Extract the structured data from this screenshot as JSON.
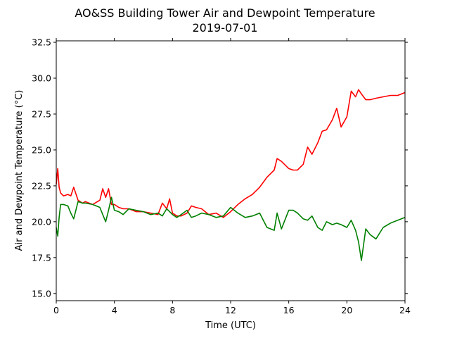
{
  "chart_data": {
    "type": "line",
    "title": "AO&SS Building Tower Air and Dewpoint Temperature",
    "subtitle": "2019-07-01",
    "xlabel": "Time (UTC)",
    "ylabel": "Air and Dewpoint Temperature (°C)",
    "xlim": [
      0,
      24
    ],
    "ylim": [
      14.5,
      32.6
    ],
    "xticks": [
      0,
      4,
      8,
      12,
      16,
      20,
      24
    ],
    "xtick_labels": [
      "0",
      "4",
      "8",
      "12",
      "16",
      "20",
      "24"
    ],
    "yticks": [
      15.0,
      17.5,
      20.0,
      22.5,
      25.0,
      27.5,
      30.0,
      32.5
    ],
    "ytick_labels": [
      "15.0",
      "17.5",
      "20.0",
      "22.5",
      "25.0",
      "27.5",
      "30.0",
      "32.5"
    ],
    "grid": false,
    "x": [
      0,
      0.1,
      0.2,
      0.3,
      0.5,
      0.8,
      1.0,
      1.2,
      1.5,
      1.8,
      2.0,
      2.5,
      3.0,
      3.2,
      3.4,
      3.6,
      3.8,
      4.0,
      4.3,
      4.6,
      5.0,
      5.5,
      6.0,
      6.5,
      7.0,
      7.3,
      7.6,
      7.8,
      8.0,
      8.3,
      8.6,
      9.0,
      9.3,
      9.6,
      10.0,
      10.5,
      11.0,
      11.5,
      12.0,
      12.5,
      13.0,
      13.5,
      14.0,
      14.5,
      15.0,
      15.2,
      15.5,
      16.0,
      16.3,
      16.6,
      17.0,
      17.3,
      17.6,
      18.0,
      18.3,
      18.6,
      19.0,
      19.3,
      19.6,
      20.0,
      20.3,
      20.6,
      20.8,
      21.0,
      21.3,
      21.6,
      22.0,
      22.5,
      23.0,
      23.5,
      24.0
    ],
    "series": [
      {
        "color": "#ff0000",
        "values": [
          22.6,
          23.7,
          22.4,
          22.0,
          21.8,
          21.9,
          21.8,
          22.4,
          21.5,
          21.3,
          21.4,
          21.2,
          21.5,
          22.3,
          21.7,
          22.3,
          21.2,
          21.2,
          21.0,
          20.9,
          20.9,
          20.7,
          20.7,
          20.6,
          20.5,
          21.3,
          20.9,
          21.6,
          20.6,
          20.4,
          20.4,
          20.6,
          21.1,
          21.0,
          20.9,
          20.5,
          20.6,
          20.3,
          20.7,
          21.2,
          21.6,
          21.9,
          22.4,
          23.1,
          23.6,
          24.4,
          24.2,
          23.7,
          23.6,
          23.6,
          24.0,
          25.2,
          24.7,
          25.5,
          26.3,
          26.4,
          27.1,
          27.9,
          26.6,
          27.3,
          29.1,
          28.7,
          29.2,
          28.9,
          28.5,
          28.5,
          28.6,
          28.7,
          28.8,
          28.8,
          29.0
        ]
      },
      {
        "color": "#008000",
        "values": [
          19.6,
          19.0,
          20.3,
          21.2,
          21.2,
          21.1,
          20.6,
          20.2,
          21.4,
          21.3,
          21.3,
          21.2,
          21.0,
          20.5,
          20.0,
          20.8,
          21.7,
          20.8,
          20.7,
          20.5,
          20.9,
          20.8,
          20.7,
          20.5,
          20.6,
          20.4,
          20.9,
          20.7,
          20.5,
          20.3,
          20.5,
          20.8,
          20.3,
          20.4,
          20.6,
          20.5,
          20.3,
          20.4,
          21.0,
          20.6,
          20.3,
          20.4,
          20.6,
          19.6,
          19.4,
          20.6,
          19.5,
          20.8,
          20.8,
          20.6,
          20.2,
          20.1,
          20.4,
          19.6,
          19.4,
          20.0,
          19.8,
          19.9,
          19.8,
          19.6,
          20.1,
          19.4,
          18.6,
          17.3,
          19.5,
          19.1,
          18.8,
          19.6,
          19.9,
          20.1,
          20.3
        ]
      }
    ]
  }
}
